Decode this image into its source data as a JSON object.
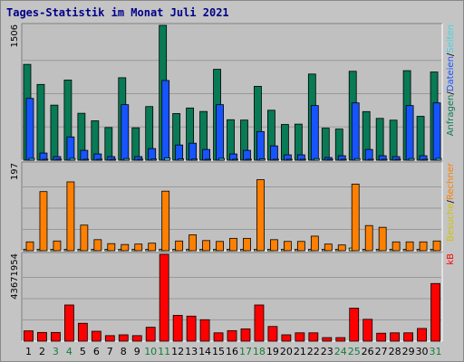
{
  "title": "Tages-Statistik im Monat Juli 2021",
  "colors": {
    "anfragen": "#087a55",
    "dateien": "#1654ff",
    "seiten": "#43d5e0",
    "besuche": "#f7e65c",
    "rechner": "#ff8000",
    "kb": "#ff0000",
    "weekend": "#157c3a",
    "day": "#000000",
    "grid": "#999999",
    "panel_bg": "#c0c0c0",
    "frame_bg": "#c4c4c4"
  },
  "legend": {
    "top": [
      {
        "text": "Anfragen",
        "color": "#087a55"
      },
      {
        "text": "/",
        "color": "#000000"
      },
      {
        "text": "Dateien",
        "color": "#1654ff"
      },
      {
        "text": "/",
        "color": "#000000"
      },
      {
        "text": "Seiten",
        "color": "#43d5e0"
      }
    ],
    "middle": [
      {
        "text": "Besuche",
        "color": "#d4c200"
      },
      {
        "text": "/",
        "color": "#000000"
      },
      {
        "text": "Rechner",
        "color": "#ff8000"
      }
    ],
    "bottom": [
      {
        "text": "kB",
        "color": "#ff0000"
      }
    ]
  },
  "chart_data": {
    "type": "bar",
    "title": "Tages-Statistik im Monat Juli 2021",
    "categories": [
      "1",
      "2",
      "3",
      "4",
      "5",
      "6",
      "7",
      "8",
      "9",
      "10",
      "11",
      "12",
      "13",
      "14",
      "15",
      "16",
      "17",
      "18",
      "19",
      "20",
      "21",
      "22",
      "23",
      "24",
      "25",
      "26",
      "27",
      "28",
      "29",
      "30",
      "31"
    ],
    "weekend_days": [
      "3",
      "4",
      "10",
      "11",
      "17",
      "18",
      "24",
      "25",
      "31"
    ],
    "panels": [
      {
        "ymax_label": "1506",
        "ylim": [
          0,
          1506
        ],
        "series": [
          {
            "name": "Anfragen",
            "values": [
              1070,
              846,
              615,
              895,
              524,
              440,
              365,
              921,
              362,
              599,
              1506,
              521,
              583,
              544,
              1015,
              452,
              448,
              825,
              558,
              399,
              403,
              962,
              358,
              348,
              993,
              543,
              467,
              447,
              1000,
              490,
              985
            ]
          },
          {
            "name": "Dateien",
            "values": [
              690,
              80,
              40,
              260,
              110,
              70,
              40,
              620,
              40,
              130,
              890,
              170,
              190,
              120,
              620,
              70,
              110,
              320,
              160,
              60,
              60,
              610,
              30,
              50,
              640,
              120,
              50,
              40,
              610,
              50,
              640
            ]
          },
          {
            "name": "Seiten",
            "values": [
              20,
              10,
              8,
              20,
              10,
              8,
              6,
              18,
              6,
              12,
              25,
              14,
              12,
              10,
              20,
              8,
              10,
              15,
              10,
              6,
              6,
              18,
              5,
              5,
              18,
              10,
              8,
              6,
              18,
              8,
              20
            ]
          }
        ]
      },
      {
        "ymax_label": "197",
        "ylim": [
          0,
          197
        ],
        "series": [
          {
            "name": "Besuche",
            "values": [
              3,
              3,
              3,
              3,
              3,
              3,
              3,
              3,
              3,
              3,
              3,
              3,
              3,
              3,
              3,
              3,
              3,
              3,
              3,
              3,
              3,
              3,
              3,
              3,
              6,
              3,
              3,
              3,
              3,
              3,
              3
            ]
          },
          {
            "name": "Rechner",
            "values": [
              20,
              134,
              22,
              156,
              58,
              25,
              16,
              14,
              15,
              17,
              135,
              22,
              36,
              23,
              21,
              28,
              28,
              161,
              25,
              21,
              21,
              33,
              15,
              13,
              151,
              57,
              53,
              20,
              20,
              20,
              22
            ]
          }
        ]
      },
      {
        "ymax_label": "43671954",
        "ylim": [
          0,
          43671954
        ],
        "series": [
          {
            "name": "kB",
            "values": [
              5200000,
              4400000,
              4400000,
              18200000,
              9000000,
              5000000,
              2800000,
              3200000,
              2800000,
              7000000,
              43671954,
              13000000,
              12600000,
              10800000,
              4200000,
              5300000,
              6200000,
              18200000,
              7400000,
              3200000,
              4200000,
              4200000,
              1800000,
              1800000,
              16600000,
              11000000,
              4000000,
              4200000,
              4200000,
              6400000,
              29000000
            ]
          }
        ]
      }
    ]
  }
}
